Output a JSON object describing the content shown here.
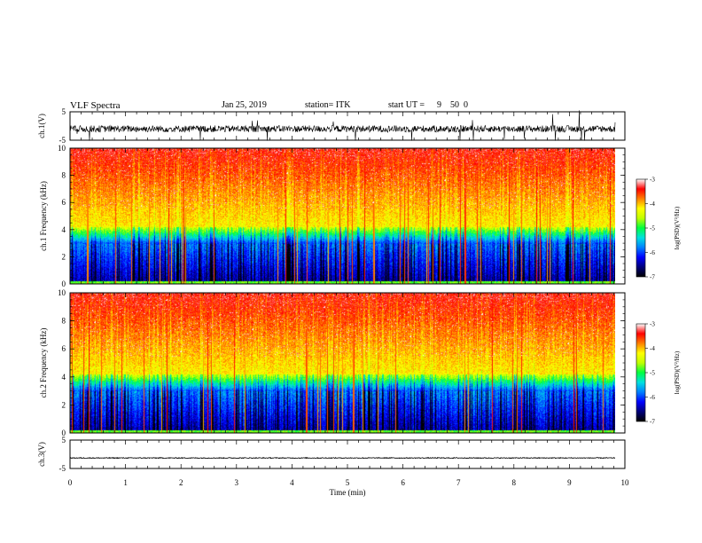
{
  "header": {
    "title": "VLF Spectra",
    "date": "Jan 25, 2019",
    "station": "station= ITK",
    "start_ut_label": "start UT =",
    "start_ut_h": "9",
    "start_ut_m": "50",
    "start_ut_s": "0"
  },
  "chart_data": [
    {
      "type": "line",
      "panel": "ch1-waveform",
      "ylabel": "ch.1(V)",
      "ylim": [
        -5,
        5
      ],
      "yticks": [
        "5",
        "-5"
      ],
      "xlim": [
        0,
        10
      ],
      "series": [
        {
          "baseline": -1.0,
          "noise": 1.2,
          "spikes": 8
        }
      ]
    },
    {
      "type": "heatmap",
      "panel": "ch1-spectrogram",
      "ylabel": "ch.1 Frequency (kHz)",
      "ylim": [
        0,
        10
      ],
      "yticks": [
        "0",
        "2",
        "4",
        "6",
        "8",
        "10"
      ],
      "xlim": [
        0,
        9.83
      ],
      "colorbar": {
        "label": "log(PSD)(V²/Hz)",
        "ticks": [
          "-3",
          "-4",
          "-5",
          "-6",
          "-7"
        ],
        "range": [
          -7,
          -3
        ]
      }
    },
    {
      "type": "heatmap",
      "panel": "ch2-spectrogram",
      "ylabel": "ch.2 Frequency (kHz)",
      "ylim": [
        0,
        10
      ],
      "yticks": [
        "0",
        "2",
        "4",
        "6",
        "8",
        "10"
      ],
      "xlim": [
        0,
        9.83
      ],
      "colorbar": {
        "label": "log(PSD)(V²/Hz)",
        "ticks": [
          "-3",
          "-4",
          "-5",
          "-6",
          "-7"
        ],
        "range": [
          -7,
          -3
        ]
      }
    },
    {
      "type": "line",
      "panel": "ch3-waveform",
      "ylabel": "ch.3(V)",
      "ylim": [
        -5,
        5
      ],
      "yticks": [
        "5",
        "-5"
      ],
      "xlim": [
        0,
        10
      ],
      "series": [
        {
          "baseline": -1.3,
          "noise": 0.15
        }
      ]
    }
  ],
  "xaxis": {
    "label": "Time (min)",
    "ticks": [
      "0",
      "1",
      "2",
      "3",
      "4",
      "5",
      "6",
      "7",
      "8",
      "9",
      "10"
    ],
    "range": [
      0,
      10
    ]
  },
  "colormap": [
    "#000000",
    "#00007a",
    "#0000ff",
    "#0080ff",
    "#00e0e0",
    "#00ff40",
    "#c0ff00",
    "#ffff00",
    "#ff8000",
    "#ff0000",
    "#ffffff"
  ]
}
